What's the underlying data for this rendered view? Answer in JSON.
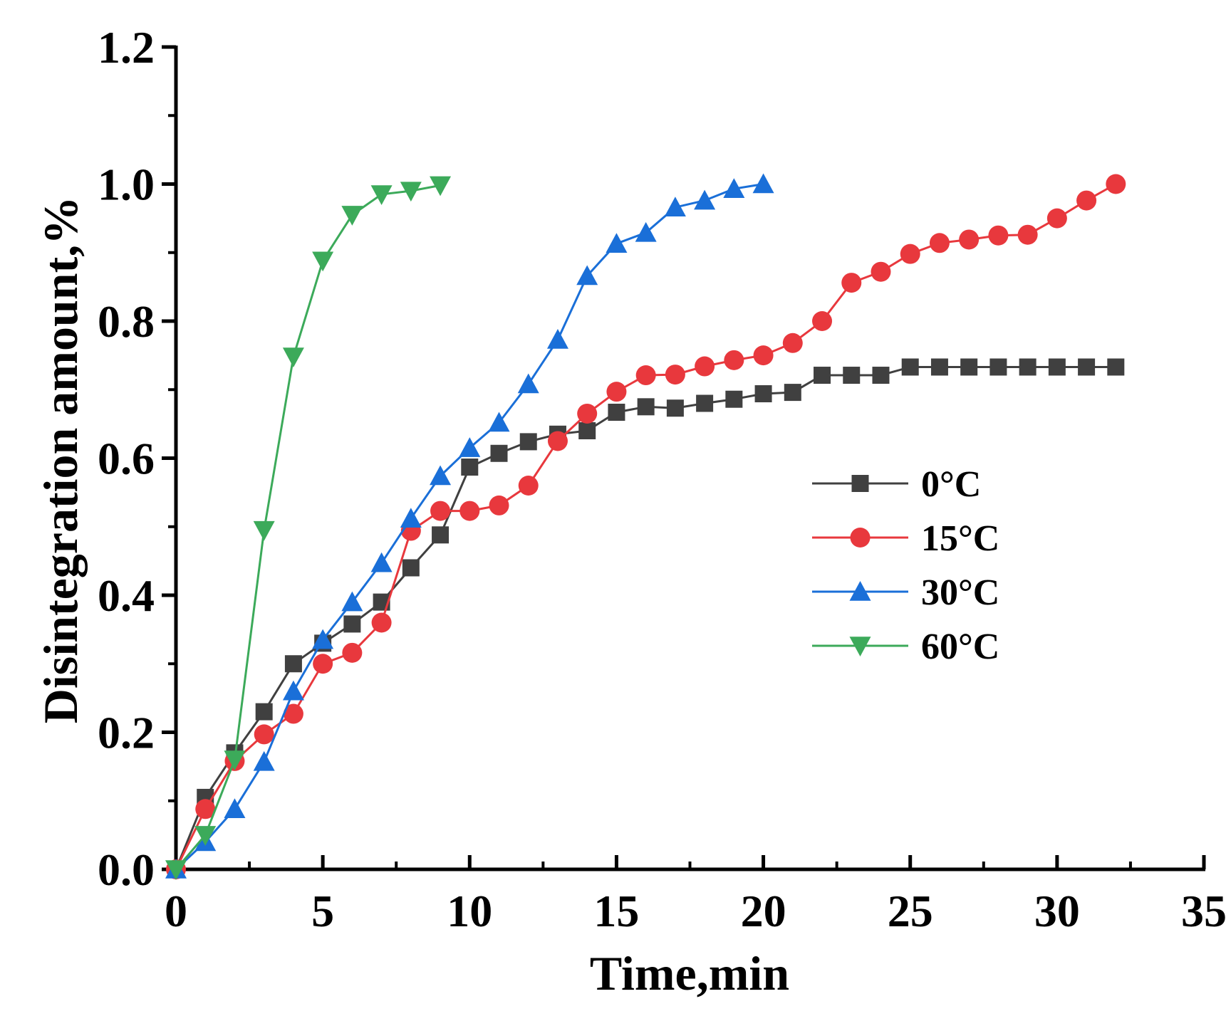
{
  "chart_data": {
    "type": "line",
    "xlabel": "Time,min",
    "ylabel": "Disintegration amount,%",
    "xlim": [
      0,
      35
    ],
    "ylim": [
      0,
      1.2
    ],
    "xticks": [
      0,
      5,
      10,
      15,
      20,
      25,
      30,
      35
    ],
    "xtick_labels": [
      "0",
      "5",
      "10",
      "15",
      "20",
      "25",
      "30",
      "35"
    ],
    "yticks": [
      0,
      0.2,
      0.4,
      0.6,
      0.8,
      1.0,
      1.2
    ],
    "ytick_labels": [
      "0.0",
      "0.2",
      "0.4",
      "0.6",
      "0.8",
      "1.0",
      "1.2"
    ],
    "grid": false,
    "legend_position": "center-right",
    "series": [
      {
        "name": "0°C",
        "color": "#404040",
        "marker": "square",
        "x": [
          0,
          1,
          2,
          3,
          4,
          5,
          6,
          7,
          8,
          9,
          10,
          11,
          12,
          13,
          14,
          15,
          16,
          17,
          18,
          19,
          20,
          21,
          22,
          23,
          24,
          25,
          26,
          27,
          28,
          29,
          30,
          31,
          32
        ],
        "y": [
          0,
          0.105,
          0.17,
          0.23,
          0.3,
          0.33,
          0.358,
          0.39,
          0.44,
          0.488,
          0.587,
          0.607,
          0.624,
          0.635,
          0.64,
          0.667,
          0.675,
          0.673,
          0.68,
          0.686,
          0.694,
          0.696,
          0.721,
          0.721,
          0.721,
          0.733,
          0.733,
          0.733,
          0.733,
          0.733,
          0.733,
          0.733,
          0.733
        ]
      },
      {
        "name": "15°C",
        "color": "#e8383d",
        "marker": "circle",
        "x": [
          0,
          1,
          2,
          3,
          4,
          5,
          6,
          7,
          8,
          9,
          10,
          11,
          12,
          13,
          14,
          15,
          16,
          17,
          18,
          19,
          20,
          21,
          22,
          23,
          24,
          25,
          26,
          27,
          28,
          29,
          30,
          31,
          32
        ],
        "y": [
          0,
          0.088,
          0.158,
          0.197,
          0.227,
          0.3,
          0.316,
          0.36,
          0.494,
          0.523,
          0.523,
          0.531,
          0.56,
          0.625,
          0.665,
          0.697,
          0.721,
          0.722,
          0.734,
          0.743,
          0.75,
          0.768,
          0.8,
          0.856,
          0.872,
          0.898,
          0.914,
          0.919,
          0.925,
          0.926,
          0.95,
          0.976,
          1.0
        ]
      },
      {
        "name": "30°C",
        "color": "#1a6fd8",
        "marker": "triangle-up",
        "x": [
          0,
          1,
          2,
          3,
          4,
          5,
          6,
          7,
          8,
          9,
          10,
          11,
          12,
          13,
          14,
          15,
          16,
          17,
          18,
          19,
          20
        ],
        "y": [
          0,
          0.04,
          0.088,
          0.157,
          0.26,
          0.335,
          0.39,
          0.447,
          0.512,
          0.574,
          0.615,
          0.652,
          0.708,
          0.773,
          0.866,
          0.913,
          0.929,
          0.966,
          0.976,
          0.993,
          1.0
        ]
      },
      {
        "name": "60°C",
        "color": "#3caa5a",
        "marker": "triangle-down",
        "x": [
          0,
          1,
          2,
          3,
          4,
          5,
          6,
          7,
          8,
          9
        ],
        "y": [
          0,
          0.05,
          0.16,
          0.495,
          0.748,
          0.888,
          0.955,
          0.985,
          0.99,
          0.998
        ]
      }
    ]
  }
}
